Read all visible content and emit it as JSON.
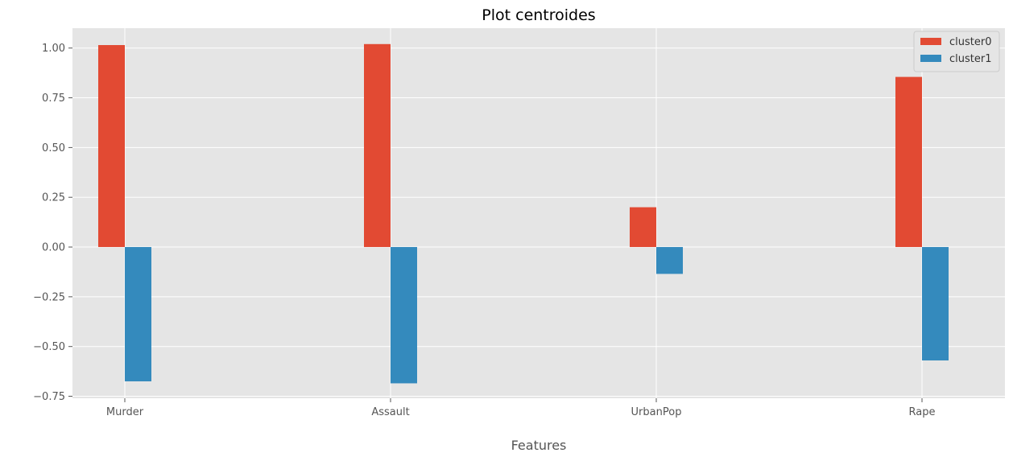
{
  "chart_data": {
    "type": "bar",
    "title": "Plot centroides",
    "xlabel": "Features",
    "ylabel": "",
    "categories": [
      "Murder",
      "Assault",
      "UrbanPop",
      "Rape"
    ],
    "series": [
      {
        "name": "cluster0",
        "color": "#e24a33",
        "values": [
          1.015,
          1.02,
          0.2,
          0.855
        ]
      },
      {
        "name": "cluster1",
        "color": "#348abd",
        "values": [
          -0.675,
          -0.685,
          -0.135,
          -0.57
        ]
      }
    ],
    "ylim": [
      -0.76,
      1.1
    ],
    "yticks": [
      -0.75,
      -0.5,
      -0.25,
      0.0,
      0.25,
      0.5,
      0.75,
      1.0
    ],
    "ytick_labels": [
      "−0.75",
      "−0.50",
      "−0.25",
      "0.00",
      "0.25",
      "0.50",
      "0.75",
      "1.00"
    ],
    "grid": true,
    "legend_position": "top-right",
    "style": "ggplot",
    "background_color": "#e5e5e5",
    "grid_color": "#ffffff"
  }
}
